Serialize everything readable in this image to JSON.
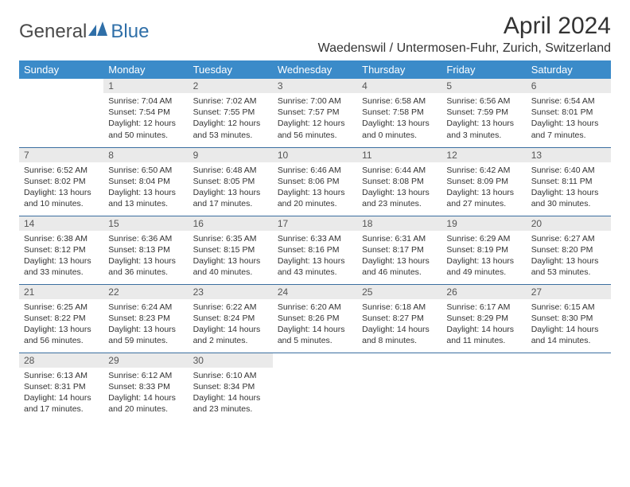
{
  "brand": {
    "name1": "General",
    "name2": "Blue",
    "color": "#2f6fa8"
  },
  "title": "April 2024",
  "location": "Waedenswil / Untermosen-Fuhr, Zurich, Switzerland",
  "colors": {
    "header_bg": "#3b8bc9",
    "row_border": "#3b6fa0",
    "daynum_bg": "#eaeaea"
  },
  "dow": [
    "Sunday",
    "Monday",
    "Tuesday",
    "Wednesday",
    "Thursday",
    "Friday",
    "Saturday"
  ],
  "start_offset": 1,
  "days": [
    {
      "n": "1",
      "sr": "7:04 AM",
      "ss": "7:54 PM",
      "dl": "12 hours and 50 minutes."
    },
    {
      "n": "2",
      "sr": "7:02 AM",
      "ss": "7:55 PM",
      "dl": "12 hours and 53 minutes."
    },
    {
      "n": "3",
      "sr": "7:00 AM",
      "ss": "7:57 PM",
      "dl": "12 hours and 56 minutes."
    },
    {
      "n": "4",
      "sr": "6:58 AM",
      "ss": "7:58 PM",
      "dl": "13 hours and 0 minutes."
    },
    {
      "n": "5",
      "sr": "6:56 AM",
      "ss": "7:59 PM",
      "dl": "13 hours and 3 minutes."
    },
    {
      "n": "6",
      "sr": "6:54 AM",
      "ss": "8:01 PM",
      "dl": "13 hours and 7 minutes."
    },
    {
      "n": "7",
      "sr": "6:52 AM",
      "ss": "8:02 PM",
      "dl": "13 hours and 10 minutes."
    },
    {
      "n": "8",
      "sr": "6:50 AM",
      "ss": "8:04 PM",
      "dl": "13 hours and 13 minutes."
    },
    {
      "n": "9",
      "sr": "6:48 AM",
      "ss": "8:05 PM",
      "dl": "13 hours and 17 minutes."
    },
    {
      "n": "10",
      "sr": "6:46 AM",
      "ss": "8:06 PM",
      "dl": "13 hours and 20 minutes."
    },
    {
      "n": "11",
      "sr": "6:44 AM",
      "ss": "8:08 PM",
      "dl": "13 hours and 23 minutes."
    },
    {
      "n": "12",
      "sr": "6:42 AM",
      "ss": "8:09 PM",
      "dl": "13 hours and 27 minutes."
    },
    {
      "n": "13",
      "sr": "6:40 AM",
      "ss": "8:11 PM",
      "dl": "13 hours and 30 minutes."
    },
    {
      "n": "14",
      "sr": "6:38 AM",
      "ss": "8:12 PM",
      "dl": "13 hours and 33 minutes."
    },
    {
      "n": "15",
      "sr": "6:36 AM",
      "ss": "8:13 PM",
      "dl": "13 hours and 36 minutes."
    },
    {
      "n": "16",
      "sr": "6:35 AM",
      "ss": "8:15 PM",
      "dl": "13 hours and 40 minutes."
    },
    {
      "n": "17",
      "sr": "6:33 AM",
      "ss": "8:16 PM",
      "dl": "13 hours and 43 minutes."
    },
    {
      "n": "18",
      "sr": "6:31 AM",
      "ss": "8:17 PM",
      "dl": "13 hours and 46 minutes."
    },
    {
      "n": "19",
      "sr": "6:29 AM",
      "ss": "8:19 PM",
      "dl": "13 hours and 49 minutes."
    },
    {
      "n": "20",
      "sr": "6:27 AM",
      "ss": "8:20 PM",
      "dl": "13 hours and 53 minutes."
    },
    {
      "n": "21",
      "sr": "6:25 AM",
      "ss": "8:22 PM",
      "dl": "13 hours and 56 minutes."
    },
    {
      "n": "22",
      "sr": "6:24 AM",
      "ss": "8:23 PM",
      "dl": "13 hours and 59 minutes."
    },
    {
      "n": "23",
      "sr": "6:22 AM",
      "ss": "8:24 PM",
      "dl": "14 hours and 2 minutes."
    },
    {
      "n": "24",
      "sr": "6:20 AM",
      "ss": "8:26 PM",
      "dl": "14 hours and 5 minutes."
    },
    {
      "n": "25",
      "sr": "6:18 AM",
      "ss": "8:27 PM",
      "dl": "14 hours and 8 minutes."
    },
    {
      "n": "26",
      "sr": "6:17 AM",
      "ss": "8:29 PM",
      "dl": "14 hours and 11 minutes."
    },
    {
      "n": "27",
      "sr": "6:15 AM",
      "ss": "8:30 PM",
      "dl": "14 hours and 14 minutes."
    },
    {
      "n": "28",
      "sr": "6:13 AM",
      "ss": "8:31 PM",
      "dl": "14 hours and 17 minutes."
    },
    {
      "n": "29",
      "sr": "6:12 AM",
      "ss": "8:33 PM",
      "dl": "14 hours and 20 minutes."
    },
    {
      "n": "30",
      "sr": "6:10 AM",
      "ss": "8:34 PM",
      "dl": "14 hours and 23 minutes."
    }
  ],
  "labels": {
    "sunrise": "Sunrise:",
    "sunset": "Sunset:",
    "daylight": "Daylight:"
  }
}
